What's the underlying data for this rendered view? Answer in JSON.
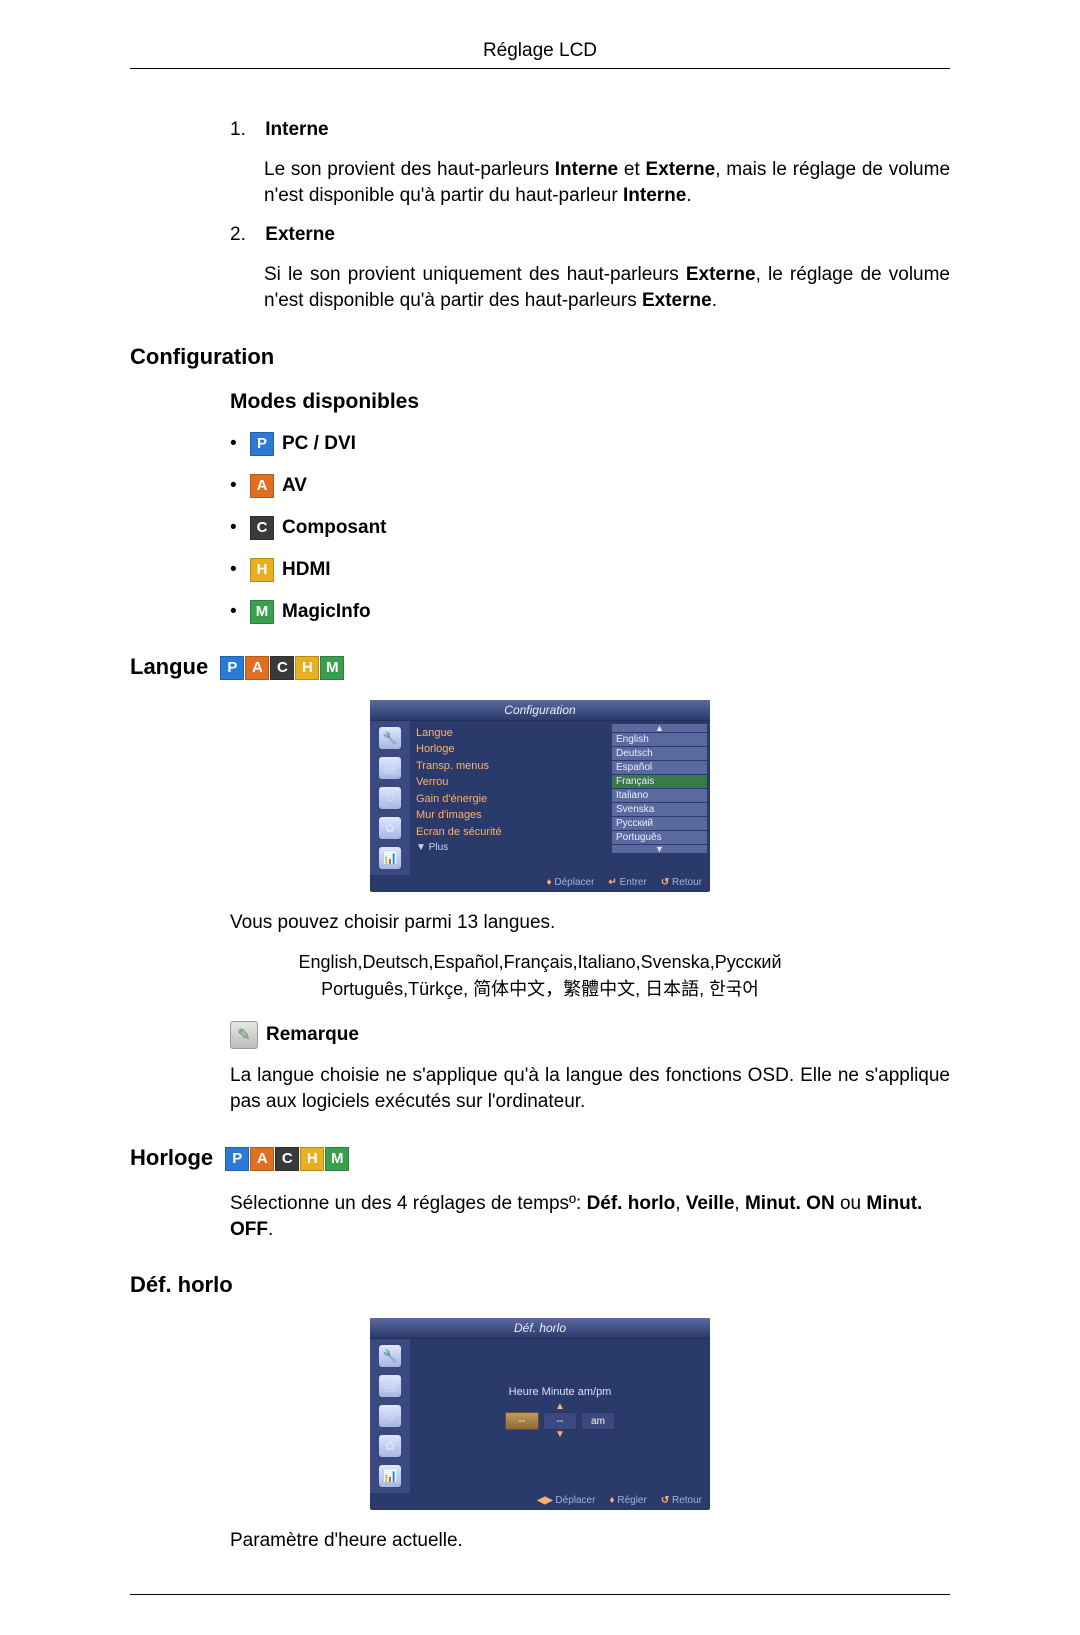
{
  "header": {
    "title": "Réglage LCD"
  },
  "items": {
    "one": {
      "num": "1.",
      "label": "Interne",
      "body_prefix": "Le son provient des haut-parleurs ",
      "bold1": "Interne",
      "mid": " et ",
      "bold2": "Externe",
      "body_suffix": ", mais le réglage de volume n'est disponible qu'à partir du haut-parleur ",
      "bold3": "Interne",
      "end": "."
    },
    "two": {
      "num": "2.",
      "label": "Externe",
      "body_prefix": "Si le son provient uniquement des haut-parleurs ",
      "bold1": "Externe",
      "mid": ", le réglage de volume n'est disponible qu'à partir des haut-parleurs ",
      "bold2": "Externe",
      "end": "."
    }
  },
  "sections": {
    "config": "Configuration",
    "modes": "Modes disponibles",
    "langue": "Langue",
    "horloge": "Horloge",
    "defhorlo": "Déf. horlo"
  },
  "modes": [
    {
      "letter": "P",
      "color": "#2a7ad6",
      "label": "PC / DVI"
    },
    {
      "letter": "A",
      "color": "#e07020",
      "label": "AV"
    },
    {
      "letter": "C",
      "color": "#3a3a3a",
      "label": "Composant"
    },
    {
      "letter": "H",
      "color": "#e8b020",
      "label": "HDMI"
    },
    {
      "letter": "M",
      "color": "#3aa050",
      "label": "MagicInfo"
    }
  ],
  "osd_config": {
    "title": "Configuration",
    "menu": [
      "Langue",
      "Horloge",
      "Transp. menus",
      "Verrou",
      "Gain d'énergie",
      "Mur d'images",
      "Ecran de sécurité"
    ],
    "plus": "▼ Plus",
    "langs": [
      "English",
      "Deutsch",
      "Español",
      "Français",
      "Italiano",
      "Svenska",
      "Русский",
      "Português"
    ],
    "selected_index": 3,
    "foot": {
      "move": "Déplacer",
      "enter": "Entrer",
      "ret": "Retour"
    }
  },
  "lang_text": "Vous pouvez choisir parmi 13 langues.",
  "lang_list": "English,Deutsch,Español,Français,Italiano,Svenska,Русский Português,Türkçe, 简体中文，繁體中文, 日本語, 한국어",
  "remark": {
    "label": "Remarque",
    "body": "La langue choisie ne s'applique qu'à la langue des fonctions OSD. Elle ne s'applique pas aux logiciels exécutés sur l'ordinateur."
  },
  "horloge_text": {
    "prefix": "Sélectionne un des 4 réglages de tempsº: ",
    "b1": "Déf. horlo",
    "s1": ", ",
    "b2": "Veille",
    "s2": ", ",
    "b3": "Minut. ON",
    "s3": " ou ",
    "b4": "Minut. OFF",
    "end": "."
  },
  "osd_clock": {
    "title": "Déf. horlo",
    "labels": "Heure  Minute  am/pm",
    "vals": [
      "--",
      "--",
      "am"
    ],
    "foot": {
      "move": "Déplacer",
      "adj": "Régler",
      "ret": "Retour"
    }
  },
  "defhorlo_text": "Paramètre d'heure actuelle.",
  "side_icons": [
    "🔧",
    "🖼",
    "⏱",
    "✿",
    "📊"
  ]
}
